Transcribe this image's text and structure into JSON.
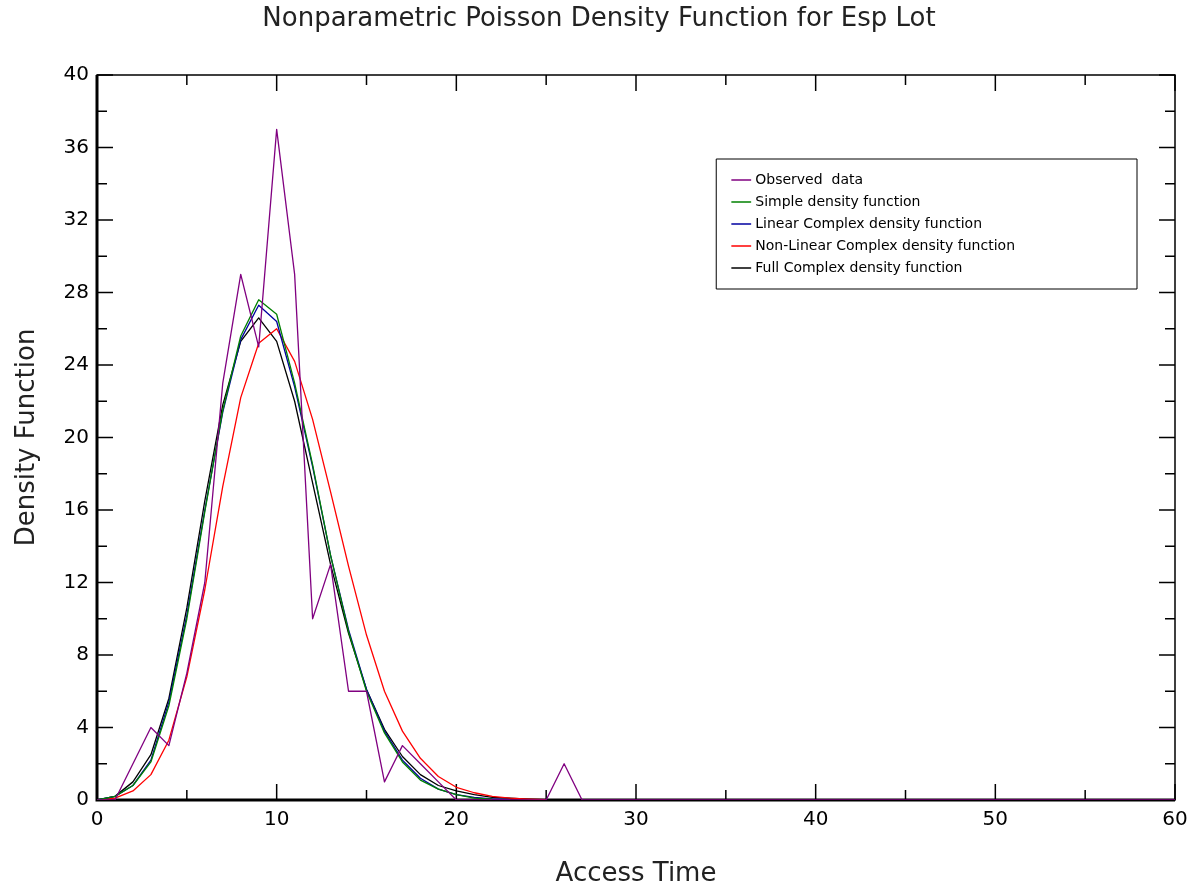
{
  "chart_data": {
    "type": "line",
    "title": "Nonparametric Poisson Density Function for Esp Lot",
    "xlabel": "Access Time",
    "ylabel": "Density Function",
    "x": [
      0,
      1,
      2,
      3,
      4,
      5,
      6,
      7,
      8,
      9,
      10,
      11,
      12,
      13,
      14,
      15,
      16,
      17,
      18,
      19,
      20,
      21,
      22,
      23,
      24,
      25,
      26,
      27,
      28,
      29,
      30,
      60
    ],
    "series": [
      {
        "name": "Observed  data",
        "color": "#800080",
        "values": [
          0,
          0,
          2,
          4,
          3,
          7,
          12,
          23,
          29,
          25,
          37,
          29,
          10,
          13,
          6,
          6,
          1,
          3,
          2,
          1,
          0,
          0,
          0,
          0,
          0,
          0,
          2,
          0,
          0,
          0,
          0,
          0
        ]
      },
      {
        "name": "Simple density function",
        "color": "#008000",
        "values": [
          0,
          0.2,
          0.8,
          2.1,
          5.2,
          10,
          15.9,
          21.5,
          25.6,
          27.6,
          26.8,
          23,
          18.5,
          13.5,
          9.3,
          6,
          3.7,
          2.1,
          1.1,
          0.6,
          0.3,
          0.1,
          0.05,
          null,
          null,
          null,
          null,
          null,
          null,
          null,
          null,
          null
        ]
      },
      {
        "name": "Linear Complex density function",
        "color": "#0000a0",
        "values": [
          0,
          0.2,
          0.8,
          2.2,
          5.4,
          10.2,
          16,
          21.4,
          25.4,
          27.3,
          26.4,
          22.8,
          18.4,
          13.5,
          9.4,
          6.1,
          3.8,
          2.2,
          1.2,
          0.6,
          0.3,
          0.15,
          0.06,
          0.02,
          null,
          null,
          null,
          null,
          null,
          null,
          null,
          null
        ]
      },
      {
        "name": "Non-Linear Complex density function",
        "color": "#ff0000",
        "values": [
          0,
          0.1,
          0.5,
          1.4,
          3.3,
          6.8,
          11.6,
          17.3,
          22.2,
          25.2,
          26,
          24.2,
          21,
          17,
          12.9,
          9.1,
          6,
          3.8,
          2.3,
          1.3,
          0.7,
          0.4,
          0.2,
          0.1,
          0.05,
          0.02,
          null,
          null,
          null,
          null,
          null,
          null
        ]
      },
      {
        "name": "Full Complex density function",
        "color": "#000000",
        "values": [
          0,
          0.2,
          1,
          2.5,
          5.6,
          10.6,
          16.5,
          21.8,
          25.3,
          26.6,
          25.3,
          22,
          17.5,
          13,
          9.2,
          6.1,
          3.9,
          2.4,
          1.4,
          0.8,
          0.5,
          0.3,
          0.15,
          0.1,
          0.05,
          0.02,
          0,
          0,
          0,
          0,
          0,
          0
        ]
      }
    ],
    "xlim": [
      0,
      60
    ],
    "xticks": [
      0,
      {
        "value": 5,
        "label": null
      },
      10,
      {
        "value": 15,
        "label": null
      },
      20,
      {
        "value": 25,
        "label": null
      },
      30,
      {
        "value": 35,
        "label": null
      },
      40,
      {
        "value": 45,
        "label": null
      },
      50,
      {
        "value": 55,
        "label": null
      },
      60
    ],
    "ylim": [
      0,
      40
    ],
    "yticks": [
      0,
      {
        "value": 2,
        "label": null
      },
      4,
      {
        "value": 6,
        "label": null
      },
      8,
      {
        "value": 10,
        "label": null
      },
      12,
      {
        "value": 14,
        "label": null
      },
      16,
      {
        "value": 18,
        "label": null
      },
      20,
      {
        "value": 22,
        "label": null
      },
      24,
      {
        "value": 26,
        "label": null
      },
      28,
      {
        "value": 30,
        "label": null
      },
      32,
      {
        "value": 34,
        "label": null
      },
      36,
      {
        "value": 38,
        "label": null
      },
      40
    ],
    "grid": false,
    "legend": "top right",
    "marker": "none",
    "line_style": "solid"
  }
}
